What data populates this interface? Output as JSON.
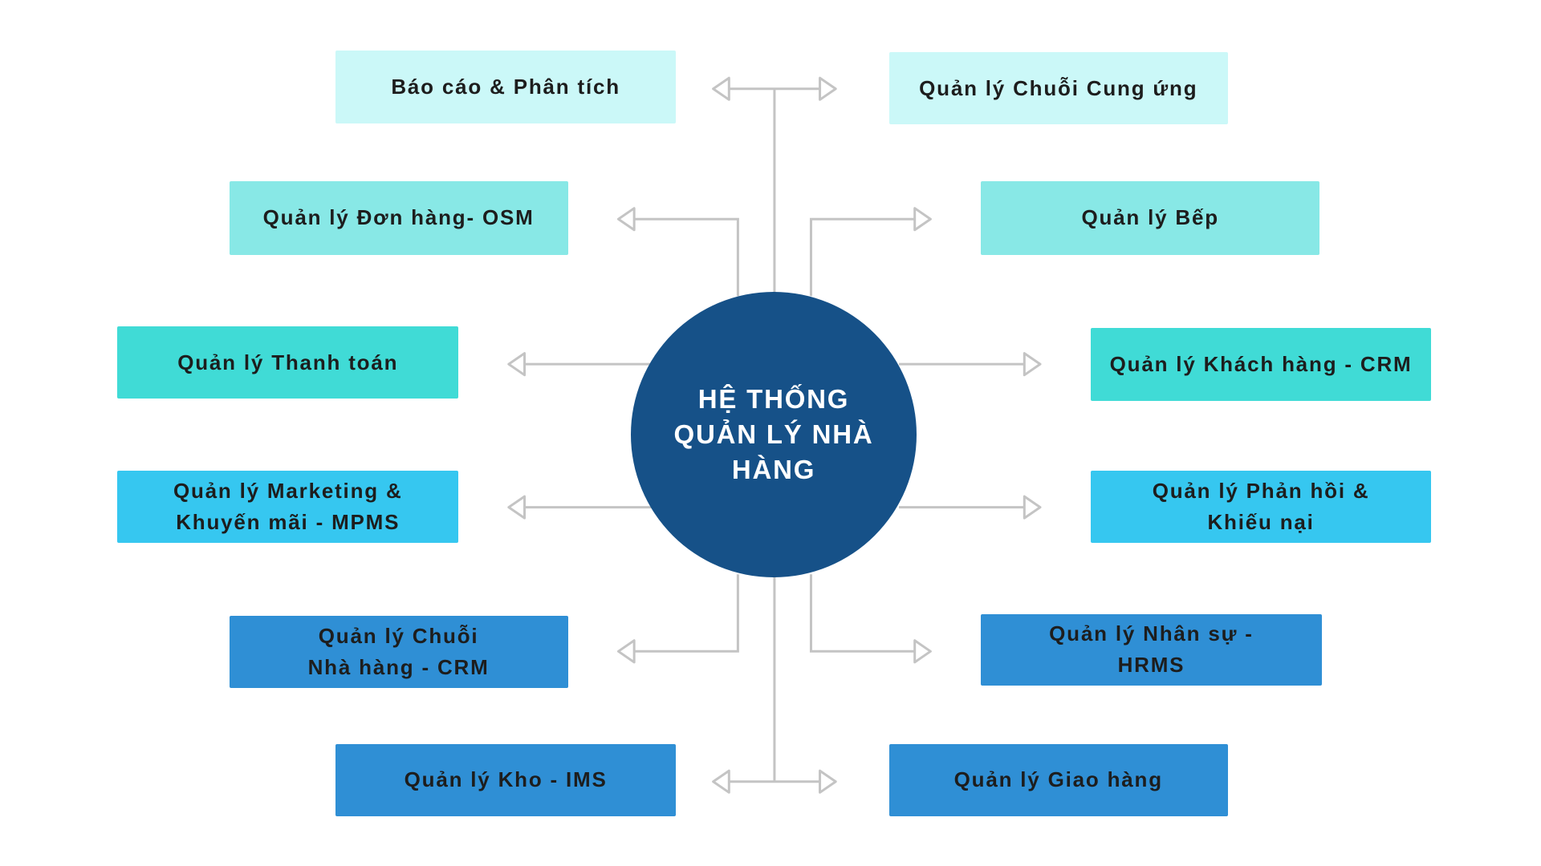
{
  "center": {
    "label": "HỆ THỐNG QUẢN LÝ NHÀ HÀNG",
    "color": "#165188"
  },
  "connector_color": "#c4c4c4",
  "modules": [
    {
      "id": "bao-cao-phan-tich",
      "lines": [
        "Báo cáo & Phân tích"
      ],
      "color": "#cbf8f8"
    },
    {
      "id": "quan-ly-chuoi-cung-ung",
      "lines": [
        "Quản lý Chuỗi Cung ứng"
      ],
      "color": "#cbf8f8"
    },
    {
      "id": "quan-ly-don-hang-osm",
      "lines": [
        "Quản lý Đơn hàng- OSM"
      ],
      "color": "#88e8e6"
    },
    {
      "id": "quan-ly-bep",
      "lines": [
        "Quản lý Bếp"
      ],
      "color": "#88e8e6"
    },
    {
      "id": "quan-ly-thanh-toan",
      "lines": [
        "Quản lý Thanh toán"
      ],
      "color": "#40dbd6"
    },
    {
      "id": "quan-ly-khach-hang-crm",
      "lines": [
        "Quản lý Khách hàng - CRM"
      ],
      "color": "#40dbd6"
    },
    {
      "id": "quan-ly-marketing-mpms",
      "lines": [
        "Quản lý Marketing &",
        "Khuyến mãi - MPMS"
      ],
      "color": "#36c7f0"
    },
    {
      "id": "quan-ly-phan-hoi-khieu-nai",
      "lines": [
        "Quản lý Phản hồi &",
        "Khiếu nại"
      ],
      "color": "#36c7f0"
    },
    {
      "id": "quan-ly-chuoi-nha-hang-crm",
      "lines": [
        "Quản lý Chuỗi",
        "Nhà hàng - CRM"
      ],
      "color": "#2f8fd5"
    },
    {
      "id": "quan-ly-nhan-su-hrms",
      "lines": [
        "Quản lý Nhân sự -",
        "HRMS"
      ],
      "color": "#2f8fd5"
    },
    {
      "id": "quan-ly-kho-ims",
      "lines": [
        "Quản lý Kho - IMS"
      ],
      "color": "#2f8fd5"
    },
    {
      "id": "quan-ly-giao-hang",
      "lines": [
        "Quản lý Giao hàng"
      ],
      "color": "#2f8fd5"
    }
  ]
}
